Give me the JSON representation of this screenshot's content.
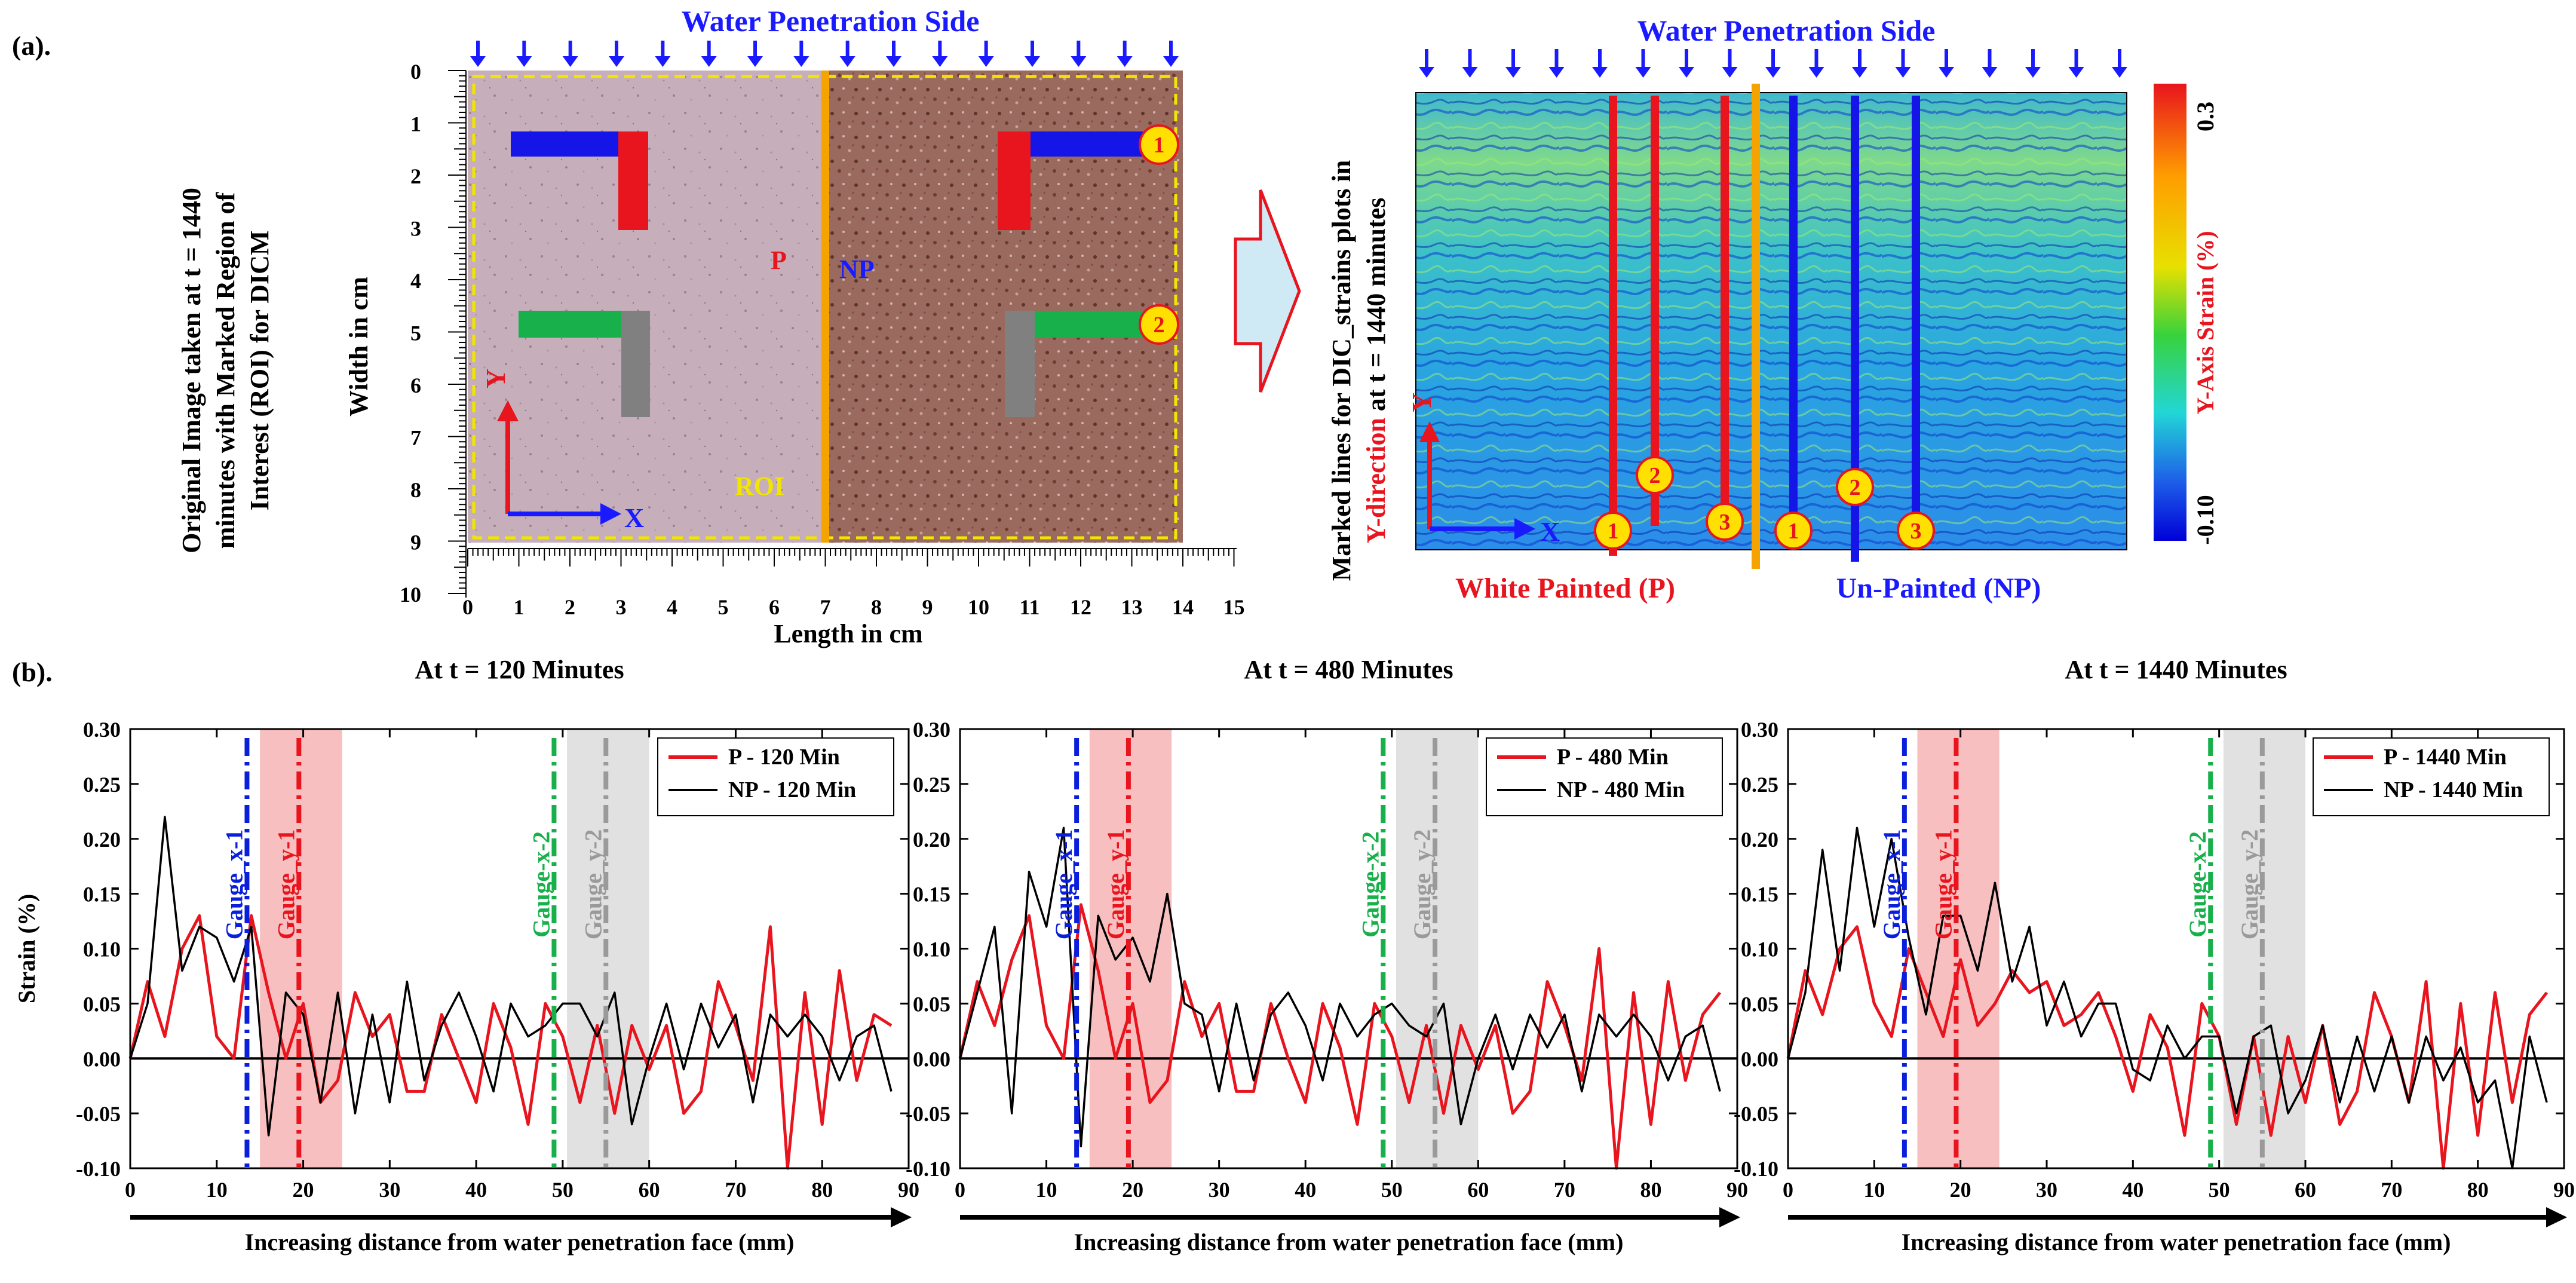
{
  "panel_a": {
    "label": "(a).",
    "water_side": "Water Penetration Side",
    "left_caption": [
      "Original Image taken at t = 1440",
      "minutes with Marked Region of",
      "Interest (ROI) for DICM"
    ],
    "width_label": "Width in cm",
    "length_label": "Length in cm",
    "x_ticks": [
      "0",
      "1",
      "2",
      "3",
      "4",
      "5",
      "6",
      "7",
      "8",
      "9",
      "10",
      "11",
      "12",
      "13",
      "14",
      "15"
    ],
    "y_ticks": [
      "0",
      "1",
      "2",
      "3",
      "4",
      "5",
      "6",
      "7",
      "8",
      "9",
      "10"
    ],
    "label_P": "P",
    "label_NP": "NP",
    "label_ROI": "ROI",
    "axis_x": "X",
    "axis_y": "Y",
    "gauge_1": "1",
    "gauge_2": "2",
    "gauge_3": "3",
    "right_caption_black_1": "Marked lines for DIC_strains plots in",
    "right_caption_red": "Y-direction",
    "right_caption_black_2": " at t = 1440 minutes",
    "white_painted": "White Painted (P)",
    "un_painted": "Un-Painted (NP)",
    "colorbar_label": "Y-Axis Strain (%)",
    "colorbar_max": "0.3",
    "colorbar_min": "-0.10"
  },
  "panel_b": {
    "label": "(b)."
  },
  "colors": {
    "P": "#e8141e",
    "NP": "#000000",
    "gauge_x1": "#0a1fdc",
    "gauge_y1": "#e8141e",
    "gauge_x2": "#18b04a",
    "gauge_y2": "#9a9a9a",
    "water": "#1a1aff"
  },
  "chart_data": [
    {
      "type": "line",
      "title": "At t = 120 Minutes",
      "xlabel": "Increasing distance from water penetration face (mm)",
      "ylabel": "Strain (%)",
      "xlim": [
        0,
        90
      ],
      "ylim": [
        -0.1,
        0.3
      ],
      "x_ticks": [
        "0",
        "10",
        "20",
        "30",
        "40",
        "50",
        "60",
        "70",
        "80",
        "90"
      ],
      "y_ticks": [
        "-0.10",
        "-0.05",
        "0.00",
        "0.05",
        "0.10",
        "0.15",
        "0.20",
        "0.25",
        "0.30"
      ],
      "legend": "top-right",
      "gauges": [
        {
          "name": "Gauge_x-1",
          "x": 13.5
        },
        {
          "name": "Gauge_y-1",
          "x": 19.5,
          "band": [
            15,
            24.5
          ]
        },
        {
          "name": "Gauge-x-2",
          "x": 49
        },
        {
          "name": "Gauge_y-2",
          "x": 55,
          "band": [
            50.5,
            60
          ]
        }
      ],
      "series": [
        {
          "name": "P - 120 Min",
          "x": [
            0,
            2,
            4,
            6,
            8,
            10,
            12,
            14,
            16,
            18,
            20,
            22,
            24,
            26,
            28,
            30,
            32,
            34,
            36,
            38,
            40,
            42,
            44,
            46,
            48,
            50,
            52,
            54,
            56,
            58,
            60,
            62,
            64,
            66,
            68,
            70,
            72,
            74,
            76,
            78,
            80,
            82,
            84,
            86,
            88
          ],
          "values": [
            0.0,
            0.07,
            0.02,
            0.1,
            0.13,
            0.02,
            0.0,
            0.13,
            0.06,
            0.0,
            0.05,
            -0.04,
            -0.02,
            0.06,
            0.02,
            0.04,
            -0.03,
            -0.03,
            0.04,
            0.0,
            -0.04,
            0.05,
            0.01,
            -0.06,
            0.05,
            0.02,
            -0.04,
            0.03,
            -0.05,
            0.03,
            -0.01,
            0.03,
            -0.05,
            -0.03,
            0.07,
            0.03,
            -0.02,
            0.12,
            -0.1,
            0.06,
            -0.06,
            0.08,
            -0.02,
            0.04,
            0.03
          ]
        },
        {
          "name": "NP - 120 Min",
          "x": [
            0,
            2,
            4,
            6,
            8,
            10,
            12,
            14,
            16,
            18,
            20,
            22,
            24,
            26,
            28,
            30,
            32,
            34,
            36,
            38,
            40,
            42,
            44,
            46,
            48,
            50,
            52,
            54,
            56,
            58,
            60,
            62,
            64,
            66,
            68,
            70,
            72,
            74,
            76,
            78,
            80,
            82,
            84,
            86,
            88
          ],
          "values": [
            0.0,
            0.05,
            0.22,
            0.08,
            0.12,
            0.11,
            0.07,
            0.12,
            -0.07,
            0.06,
            0.04,
            -0.04,
            0.06,
            -0.05,
            0.04,
            -0.04,
            0.07,
            -0.02,
            0.03,
            0.06,
            0.02,
            -0.03,
            0.05,
            0.02,
            0.03,
            0.05,
            0.05,
            0.02,
            0.06,
            -0.06,
            0.0,
            0.05,
            -0.01,
            0.05,
            0.01,
            0.04,
            -0.04,
            0.04,
            0.02,
            0.04,
            0.02,
            -0.02,
            0.02,
            0.03,
            -0.03
          ]
        }
      ]
    },
    {
      "type": "line",
      "title": "At t = 480 Minutes",
      "xlabel": "Increasing distance from water penetration face (mm)",
      "ylabel": "",
      "xlim": [
        0,
        90
      ],
      "ylim": [
        -0.1,
        0.3
      ],
      "x_ticks": [
        "0",
        "10",
        "20",
        "30",
        "40",
        "50",
        "60",
        "70",
        "80",
        "90"
      ],
      "y_ticks": [
        "-0.10",
        "-0.05",
        "0.00",
        "0.05",
        "0.10",
        "0.15",
        "0.20",
        "0.25",
        "0.30"
      ],
      "legend": "top-right",
      "gauges": [
        {
          "name": "Gauge_x-1",
          "x": 13.5
        },
        {
          "name": "Gauge_y-1",
          "x": 19.5,
          "band": [
            15,
            24.5
          ]
        },
        {
          "name": "Gauge-x-2",
          "x": 49
        },
        {
          "name": "Gauge_y-2",
          "x": 55,
          "band": [
            50.5,
            60
          ]
        }
      ],
      "series": [
        {
          "name": "P - 480 Min",
          "x": [
            0,
            2,
            4,
            6,
            8,
            10,
            12,
            14,
            16,
            18,
            20,
            22,
            24,
            26,
            28,
            30,
            32,
            34,
            36,
            38,
            40,
            42,
            44,
            46,
            48,
            50,
            52,
            54,
            56,
            58,
            60,
            62,
            64,
            66,
            68,
            70,
            72,
            74,
            76,
            78,
            80,
            82,
            84,
            86,
            88
          ],
          "values": [
            0.0,
            0.07,
            0.03,
            0.09,
            0.13,
            0.03,
            0.0,
            0.14,
            0.08,
            0.0,
            0.05,
            -0.04,
            -0.02,
            0.07,
            0.02,
            0.05,
            -0.03,
            -0.03,
            0.05,
            0.0,
            -0.04,
            0.05,
            0.01,
            -0.06,
            0.05,
            0.02,
            -0.04,
            0.03,
            -0.05,
            0.03,
            -0.01,
            0.03,
            -0.05,
            -0.03,
            0.07,
            0.03,
            -0.02,
            0.1,
            -0.1,
            0.06,
            -0.06,
            0.07,
            -0.02,
            0.04,
            0.06
          ]
        },
        {
          "name": "NP - 480 Min",
          "x": [
            0,
            2,
            4,
            6,
            8,
            10,
            12,
            14,
            16,
            18,
            20,
            22,
            24,
            26,
            28,
            30,
            32,
            34,
            36,
            38,
            40,
            42,
            44,
            46,
            48,
            50,
            52,
            54,
            56,
            58,
            60,
            62,
            64,
            66,
            68,
            70,
            72,
            74,
            76,
            78,
            80,
            82,
            84,
            86,
            88
          ],
          "values": [
            0.0,
            0.06,
            0.12,
            -0.05,
            0.17,
            0.12,
            0.21,
            -0.08,
            0.13,
            0.09,
            0.11,
            0.07,
            0.15,
            0.05,
            0.04,
            -0.03,
            0.05,
            -0.02,
            0.04,
            0.06,
            0.03,
            -0.02,
            0.05,
            0.02,
            0.04,
            0.05,
            0.03,
            0.02,
            0.05,
            -0.06,
            0.0,
            0.04,
            -0.01,
            0.04,
            0.01,
            0.04,
            -0.03,
            0.04,
            0.02,
            0.04,
            0.02,
            -0.02,
            0.02,
            0.03,
            -0.03
          ]
        }
      ]
    },
    {
      "type": "line",
      "title": "At t = 1440 Minutes",
      "xlabel": "Increasing distance from water penetration face (mm)",
      "ylabel": "",
      "xlim": [
        0,
        90
      ],
      "ylim": [
        -0.1,
        0.3
      ],
      "x_ticks": [
        "0",
        "10",
        "20",
        "30",
        "40",
        "50",
        "60",
        "70",
        "80",
        "90"
      ],
      "y_ticks": [
        "-0.10",
        "-0.05",
        "0.00",
        "0.05",
        "0.10",
        "0.15",
        "0.20",
        "0.25",
        "0.30"
      ],
      "legend": "top-right",
      "gauges": [
        {
          "name": "Gauge_x-1",
          "x": 13.5
        },
        {
          "name": "Gauge_y-1",
          "x": 19.5,
          "band": [
            15,
            24.5
          ]
        },
        {
          "name": "Gauge-x-2",
          "x": 49
        },
        {
          "name": "Gauge_y-2",
          "x": 55,
          "band": [
            50.5,
            60
          ]
        }
      ],
      "series": [
        {
          "name": "P - 1440 Min",
          "x": [
            0,
            2,
            4,
            6,
            8,
            10,
            12,
            14,
            16,
            18,
            20,
            22,
            24,
            26,
            28,
            30,
            32,
            34,
            36,
            38,
            40,
            42,
            44,
            46,
            48,
            50,
            52,
            54,
            56,
            58,
            60,
            62,
            64,
            66,
            68,
            70,
            72,
            74,
            76,
            78,
            80,
            82,
            84,
            86,
            88
          ],
          "values": [
            0.0,
            0.08,
            0.04,
            0.1,
            0.12,
            0.05,
            0.02,
            0.1,
            0.06,
            0.02,
            0.09,
            0.03,
            0.05,
            0.08,
            0.06,
            0.07,
            0.03,
            0.04,
            0.06,
            0.02,
            -0.03,
            0.04,
            0.01,
            -0.07,
            0.05,
            0.02,
            -0.06,
            0.02,
            -0.07,
            0.02,
            -0.04,
            0.03,
            -0.06,
            -0.03,
            0.06,
            0.02,
            -0.04,
            0.07,
            -0.1,
            0.05,
            -0.07,
            0.06,
            -0.04,
            0.04,
            0.06
          ]
        },
        {
          "name": "NP - 1440 Min",
          "x": [
            0,
            2,
            4,
            6,
            8,
            10,
            12,
            14,
            16,
            18,
            20,
            22,
            24,
            26,
            28,
            30,
            32,
            34,
            36,
            38,
            40,
            42,
            44,
            46,
            48,
            50,
            52,
            54,
            56,
            58,
            60,
            62,
            64,
            66,
            68,
            70,
            72,
            74,
            76,
            78,
            80,
            82,
            84,
            86,
            88
          ],
          "values": [
            0.0,
            0.06,
            0.19,
            0.08,
            0.21,
            0.12,
            0.2,
            0.11,
            0.04,
            0.13,
            0.13,
            0.08,
            0.16,
            0.07,
            0.12,
            0.03,
            0.07,
            0.02,
            0.05,
            0.05,
            -0.01,
            -0.02,
            0.03,
            0.0,
            0.02,
            0.02,
            -0.05,
            0.02,
            0.03,
            -0.05,
            -0.02,
            0.03,
            -0.04,
            0.02,
            -0.03,
            0.02,
            -0.04,
            0.02,
            -0.02,
            0.01,
            -0.04,
            -0.02,
            -0.1,
            0.02,
            -0.04
          ]
        }
      ]
    }
  ]
}
